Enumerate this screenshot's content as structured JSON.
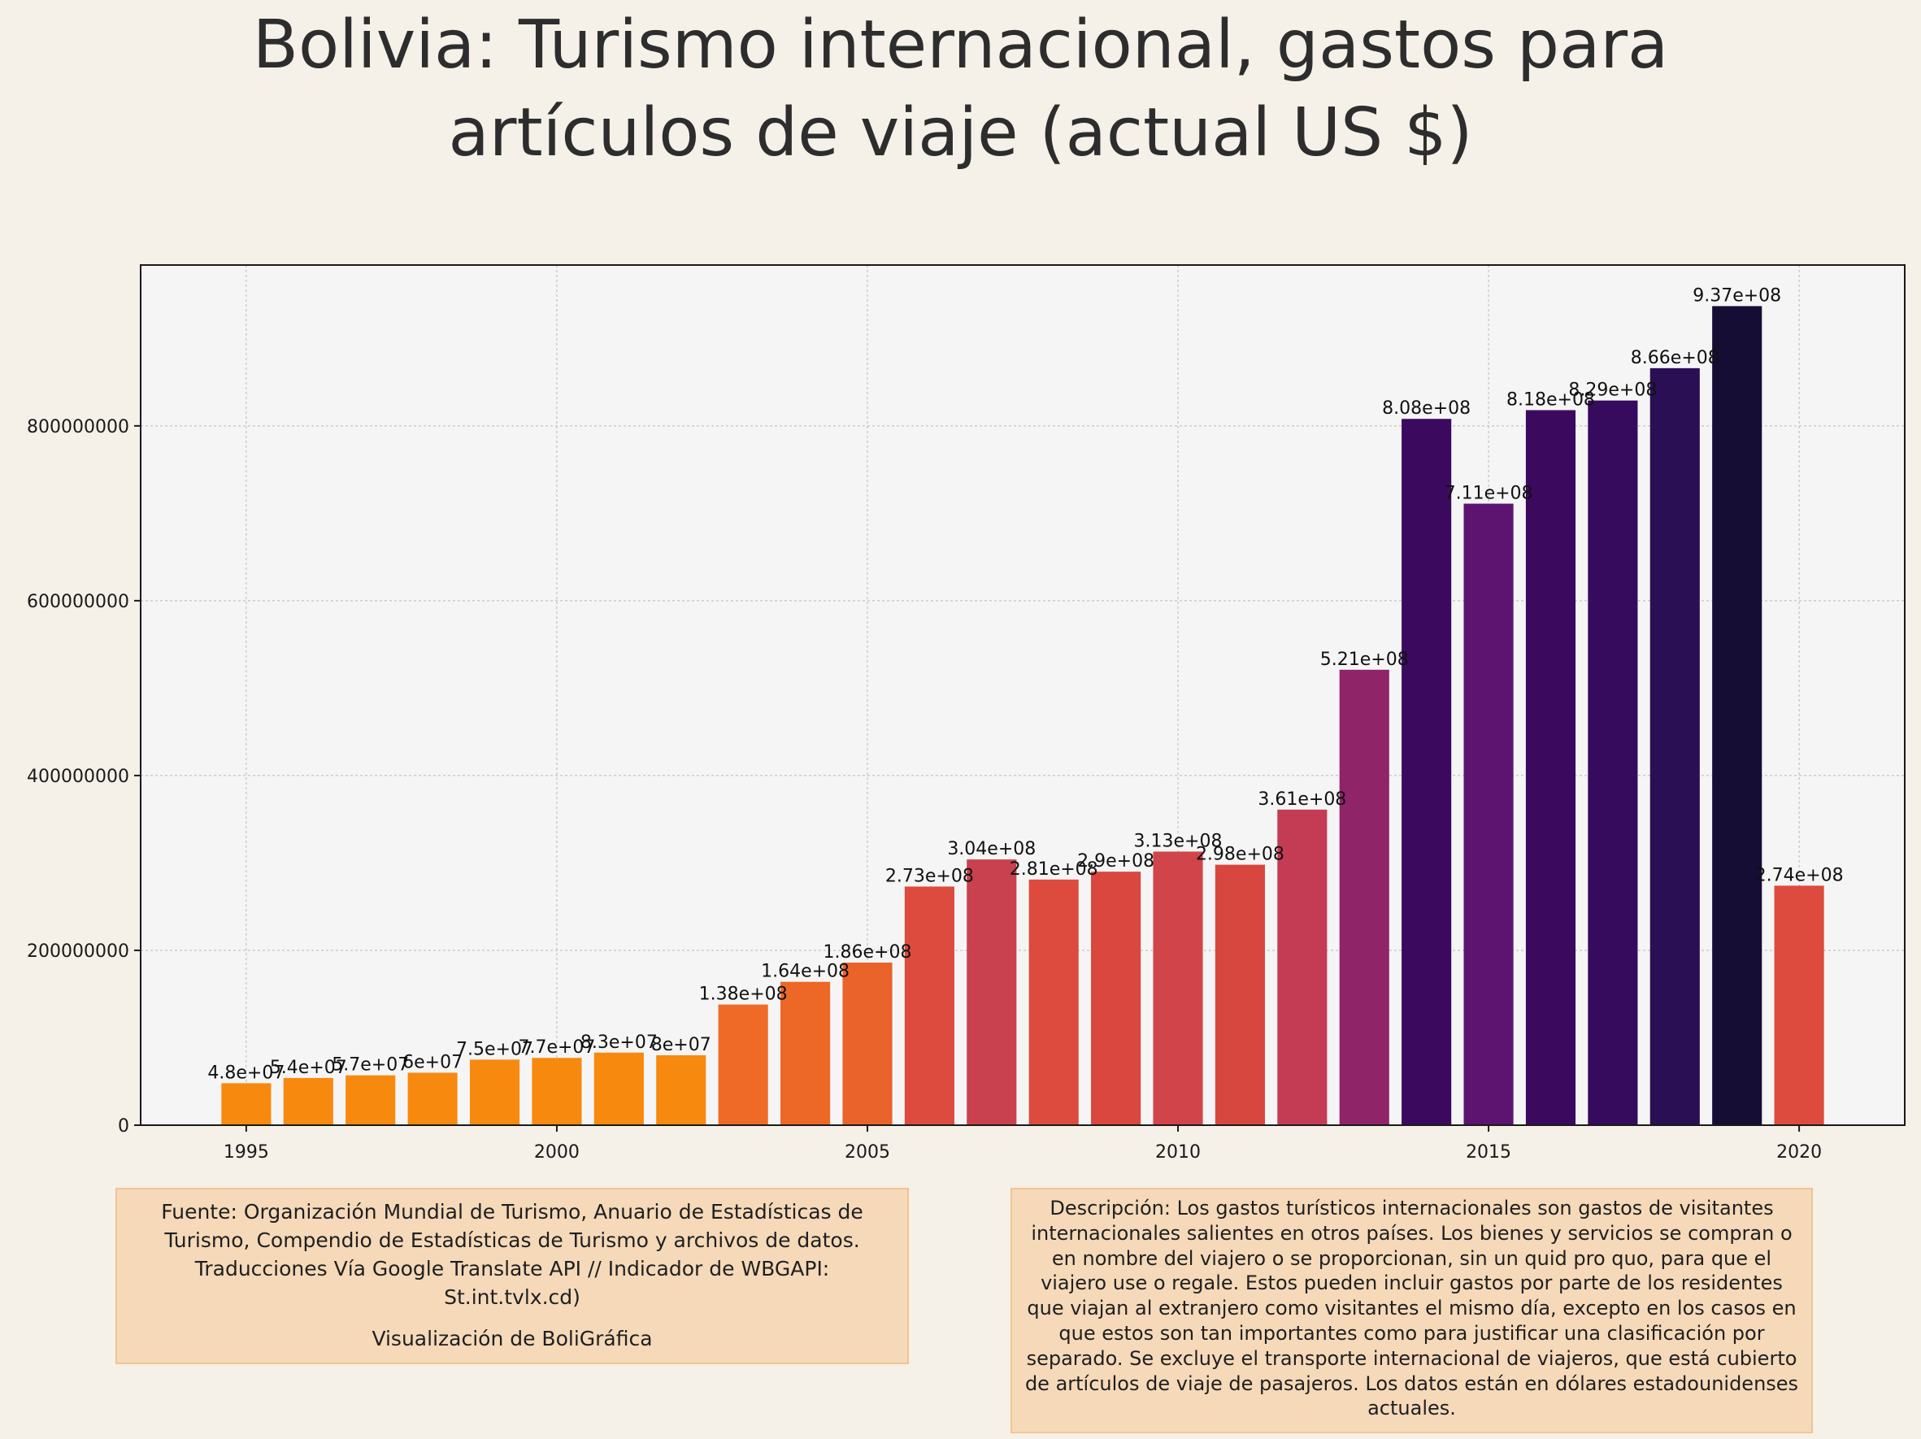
{
  "title": {
    "line1": "Bolivia:  Turismo internacional, gastos para",
    "line2": "artículos de viaje (actual US $)"
  },
  "source_note": {
    "text": "Fuente: Organización Mundial de Turismo, Anuario de Estadísticas de Turismo, Compendio de Estadísticas de Turismo y archivos de datos. Traducciones Vía Google Translate API // Indicador de WBGAPI: St.int.tvlx.cd)",
    "credit": "Visualización de BoliGráfica"
  },
  "description_note": {
    "text": "Descripción: Los gastos turísticos internacionales son gastos de visitantes internacionales salientes en otros países. Los bienes y servicios se compran o en nombre del viajero o se proporcionan, sin un quid pro quo, para que el viajero use o regale. Estos pueden incluir gastos por parte de los residentes que viajan al extranjero como visitantes el mismo día, excepto en los casos en que estos son tan importantes como para justificar una clasificación por separado. Se excluye el transporte internacional de viajeros, que está cubierto de artículos de viaje de pasajeros. Los datos están en dólares estadounidenses actuales."
  },
  "chart_data": {
    "type": "bar",
    "x": [
      1995,
      1996,
      1997,
      1998,
      1999,
      2000,
      2001,
      2002,
      2003,
      2004,
      2005,
      2006,
      2007,
      2008,
      2009,
      2010,
      2011,
      2012,
      2013,
      2014,
      2015,
      2016,
      2017,
      2018,
      2019,
      2020
    ],
    "values": [
      48000000,
      54000000,
      57000000,
      60000000,
      75000000,
      77000000,
      83000000,
      80000000,
      138000000,
      164000000,
      186000000,
      273000000,
      304000000,
      281000000,
      290000000,
      313000000,
      298000000,
      361000000,
      521000000,
      808000000,
      711000000,
      818000000,
      829000000,
      866000000,
      937000000,
      274000000
    ],
    "data_labels": [
      "4.8e+07",
      "5.4e+07",
      "5.7e+07",
      "6e+07",
      "7.5e+07",
      "7.7e+07",
      "8.3e+07",
      "8e+07",
      "1.38e+08",
      "1.64e+08",
      "1.86e+08",
      "2.73e+08",
      "3.04e+08",
      "2.81e+08",
      "2.9e+08",
      "3.13e+08",
      "2.98e+08",
      "3.61e+08",
      "5.21e+08",
      "8.08e+08",
      "7.11e+08",
      "8.18e+08",
      "8.29e+08",
      "8.66e+08",
      "9.37e+08",
      "2.74e+08"
    ],
    "colors": [
      "#f8890f",
      "#f8890f",
      "#f8890f",
      "#f8890f",
      "#f8890f",
      "#f8890f",
      "#f8890f",
      "#f8890f",
      "#ee6a26",
      "#ed6826",
      "#e9632b",
      "#dc4b3d",
      "#c9414e",
      "#dc4b3d",
      "#d9473f",
      "#d1444a",
      "#d8473f",
      "#c43c54",
      "#8f2469",
      "#3b0a5e",
      "#5c1470",
      "#3b0a5e",
      "#360a5d",
      "#2b0f55",
      "#150d33",
      "#dc4b3d"
    ],
    "xticks": [
      1995,
      2000,
      2005,
      2010,
      2015,
      2020
    ],
    "ytick_values": [
      0,
      200000000,
      400000000,
      600000000,
      800000000
    ],
    "ytick_labels": [
      "0",
      "200000000",
      "400000000",
      "600000000",
      "800000000"
    ],
    "xlim": [
      1993.3,
      2021.7
    ],
    "ylim": [
      0,
      984000000
    ],
    "xlabel": "",
    "ylabel": "",
    "grid": true,
    "background": "#f5f5f5"
  }
}
